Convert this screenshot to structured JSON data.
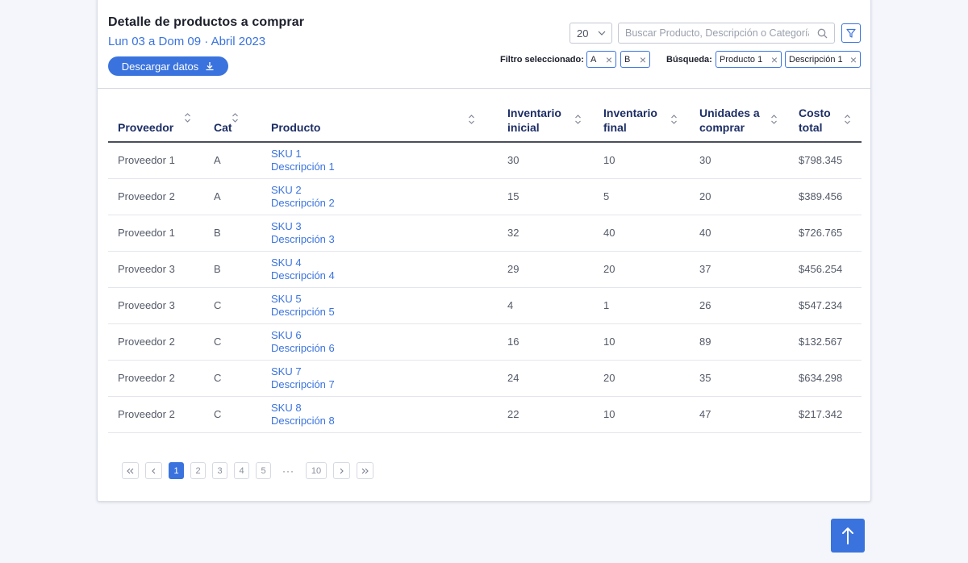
{
  "header": {
    "title": "Detalle de productos a comprar",
    "date_range": "Lun 03 a Dom 09 · Abril 2023",
    "download_label": "Descargar datos"
  },
  "controls": {
    "per_page": "20",
    "search_placeholder": "Buscar Producto, Descripción o Categoría"
  },
  "filters": {
    "label": "Filtro seleccionado:",
    "chips": [
      "A",
      "B"
    ]
  },
  "search": {
    "label": "Búsqueda:",
    "chips": [
      "Producto 1",
      "Descripción 1"
    ]
  },
  "table": {
    "columns": {
      "proveedor": "Proveedor",
      "cat": "Cat",
      "producto": "Producto",
      "inv_inicial_1": "Inventario",
      "inv_inicial_2": "inicial",
      "inv_final_1": "Inventario",
      "inv_final_2": "final",
      "unidades_1": "Unidades a",
      "unidades_2": "comprar",
      "costo_1": "Costo",
      "costo_2": "total"
    },
    "rows": [
      {
        "proveedor": "Proveedor 1",
        "cat": "A",
        "sku": "SKU 1",
        "desc": "Descripción 1",
        "inv_inicial": "30",
        "inv_final": "10",
        "unidades": "30",
        "costo": "$798.345"
      },
      {
        "proveedor": "Proveedor 2",
        "cat": "A",
        "sku": "SKU 2",
        "desc": "Descripción 2",
        "inv_inicial": "15",
        "inv_final": "5",
        "unidades": "20",
        "costo": "$389.456"
      },
      {
        "proveedor": "Proveedor 1",
        "cat": "B",
        "sku": "SKU 3",
        "desc": "Descripción 3",
        "inv_inicial": "32",
        "inv_final": "40",
        "unidades": "40",
        "costo": "$726.765"
      },
      {
        "proveedor": "Proveedor 3",
        "cat": "B",
        "sku": "SKU 4",
        "desc": "Descripción 4",
        "inv_inicial": "29",
        "inv_final": "20",
        "unidades": "37",
        "costo": "$456.254"
      },
      {
        "proveedor": "Proveedor 3",
        "cat": "C",
        "sku": "SKU 5",
        "desc": "Descripción 5",
        "inv_inicial": "4",
        "inv_final": "1",
        "unidades": "26",
        "costo": "$547.234"
      },
      {
        "proveedor": "Proveedor 2",
        "cat": "C",
        "sku": "SKU 6",
        "desc": "Descripción 6",
        "inv_inicial": "16",
        "inv_final": "10",
        "unidades": "89",
        "costo": "$132.567"
      },
      {
        "proveedor": "Proveedor 2",
        "cat": "C",
        "sku": "SKU 7",
        "desc": "Descripción 7",
        "inv_inicial": "24",
        "inv_final": "20",
        "unidades": "35",
        "costo": "$634.298"
      },
      {
        "proveedor": "Proveedor 2",
        "cat": "C",
        "sku": "SKU 8",
        "desc": "Descripción 8",
        "inv_inicial": "22",
        "inv_final": "10",
        "unidades": "47",
        "costo": "$217.342"
      }
    ]
  },
  "pagination": {
    "pages": [
      "1",
      "2",
      "3",
      "4",
      "5"
    ],
    "ellipsis": "···",
    "last_page": "10",
    "current": "1"
  },
  "icons": {
    "download": "download-icon",
    "chevron": "chevron-down-icon",
    "search": "search-icon",
    "filter": "filter-icon",
    "close": "close-icon",
    "sort": "sort-icon",
    "first": "double-chevron-left-icon",
    "prev": "chevron-left-icon",
    "next": "chevron-right-icon",
    "last": "double-chevron-right-icon",
    "scroll_top": "arrow-up-icon"
  },
  "colors": {
    "accent": "#3a73de",
    "header_text": "#1d2e66",
    "background": "#f4f6fb"
  }
}
